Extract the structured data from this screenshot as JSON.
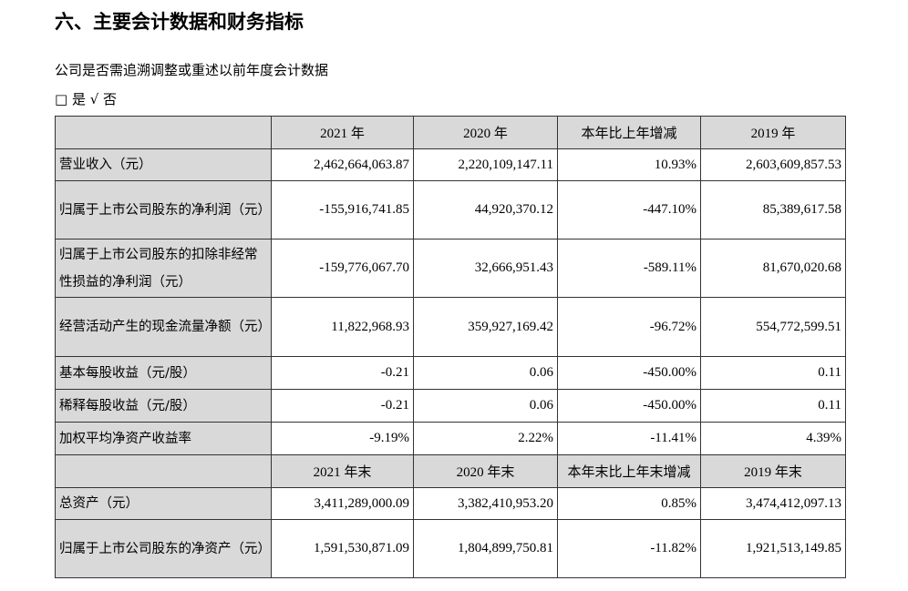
{
  "title": "六、主要会计数据和财务指标",
  "question": "公司是否需追溯调整或重述以前年度会计数据",
  "options": "□ 是 √ 否",
  "header1": [
    "2021 年",
    "2020 年",
    "本年比上年增减",
    "2019 年"
  ],
  "rows1": [
    {
      "label": "营业收入（元）",
      "values": [
        "2,462,664,063.87",
        "2,220,109,147.11",
        "10.93%",
        "2,603,609,857.53"
      ],
      "h": 35
    },
    {
      "label": "归属于上市公司股东的净利润（元）",
      "values": [
        "-155,916,741.85",
        "44,920,370.12",
        "-447.10%",
        "85,389,617.58"
      ],
      "h": 64
    },
    {
      "label": "归属于上市公司股东的扣除非经常性损益的净利润（元）",
      "values": [
        "-159,776,067.70",
        "32,666,951.43",
        "-589.11%",
        "81,670,020.68"
      ],
      "h": 64
    },
    {
      "label": "经营活动产生的现金流量净额（元）",
      "values": [
        "11,822,968.93",
        "359,927,169.42",
        "-96.72%",
        "554,772,599.51"
      ],
      "h": 65
    },
    {
      "label": "基本每股收益（元/股）",
      "values": [
        "-0.21",
        "0.06",
        "-450.00%",
        "0.11"
      ],
      "h": 36
    },
    {
      "label": "稀释每股收益（元/股）",
      "values": [
        "-0.21",
        "0.06",
        "-450.00%",
        "0.11"
      ],
      "h": 36
    },
    {
      "label": "加权平均净资产收益率",
      "values": [
        "-9.19%",
        "2.22%",
        "-11.41%",
        "4.39%"
      ],
      "h": 36
    }
  ],
  "header2": [
    "2021 年末",
    "2020 年末",
    "本年末比上年末增减",
    "2019 年末"
  ],
  "rows2": [
    {
      "label": "总资产（元）",
      "values": [
        "3,411,289,000.09",
        "3,382,410,953.20",
        "0.85%",
        "3,474,412,097.13"
      ],
      "h": 35
    },
    {
      "label": "归属于上市公司股东的净资产（元）",
      "values": [
        "1,591,530,871.09",
        "1,804,899,750.81",
        "-11.82%",
        "1,921,513,149.85"
      ],
      "h": 64
    }
  ]
}
